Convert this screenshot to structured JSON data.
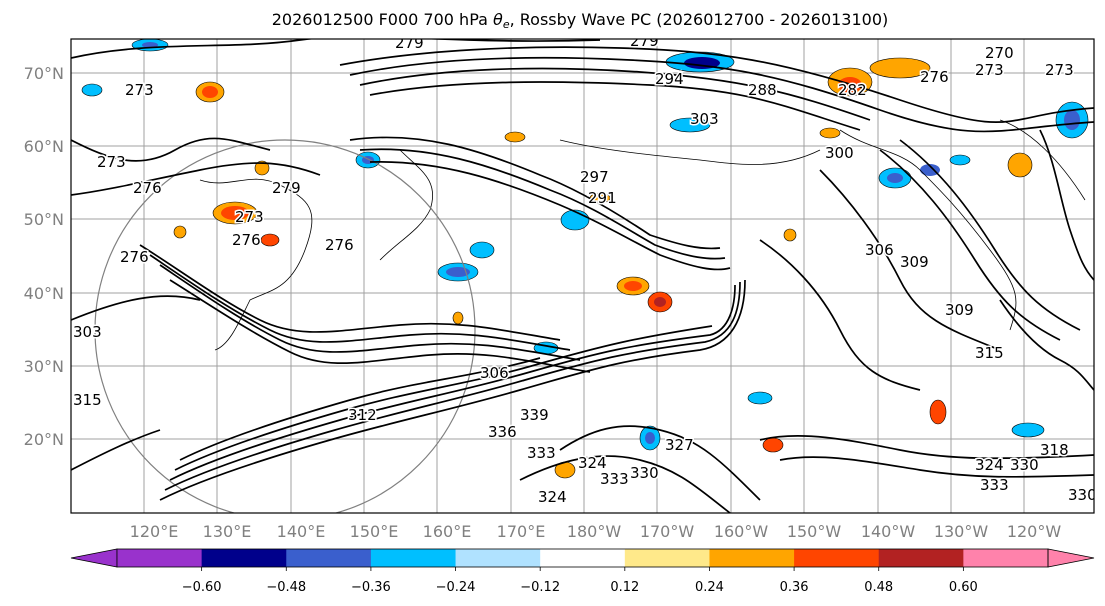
{
  "title": {
    "prefix": "2026012500 F000 700 hPa ",
    "theta": "θ",
    "theta_sub": "e",
    "suffix": ", Rossby Wave PC (2026012700 - 2026013100)"
  },
  "lat_labels": [
    "70°N",
    "60°N",
    "50°N",
    "40°N",
    "30°N",
    "20°N"
  ],
  "lon_labels": [
    "120°E",
    "130°E",
    "140°E",
    "150°E",
    "160°E",
    "170°E",
    "180°W",
    "170°W",
    "160°W",
    "150°W",
    "140°W",
    "130°W",
    "120°W"
  ],
  "colorbar": {
    "ticks": [
      "−0.60",
      "−0.48",
      "−0.36",
      "−0.24",
      "−0.12",
      "0.12",
      "0.24",
      "0.36",
      "0.48",
      "0.60"
    ],
    "colors": {
      "under": "#9932cc",
      "c1": "#9932cc",
      "c2": "#00008b",
      "c3": "#3a5fcd",
      "c4": "#00bfff",
      "c5": "#b0e2ff",
      "c6": "#ffffff",
      "c7": "#ffe98a",
      "c8": "#ffa500",
      "c9": "#ff4500",
      "c10": "#b22222",
      "c11": "#ff82ab",
      "over": "#ff82ab"
    }
  },
  "contour_labels": [
    "279",
    "279",
    "270",
    "273",
    "276",
    "273",
    "294",
    "288",
    "282",
    "273",
    "303",
    "300",
    "297",
    "291",
    "273",
    "276",
    "279",
    "276",
    "276",
    "273",
    "276",
    "306",
    "309",
    "303",
    "309",
    "315",
    "306",
    "315",
    "312",
    "339",
    "336",
    "333",
    "324",
    "327",
    "330",
    "333",
    "324",
    "324",
    "330",
    "333",
    "330",
    "318"
  ]
}
